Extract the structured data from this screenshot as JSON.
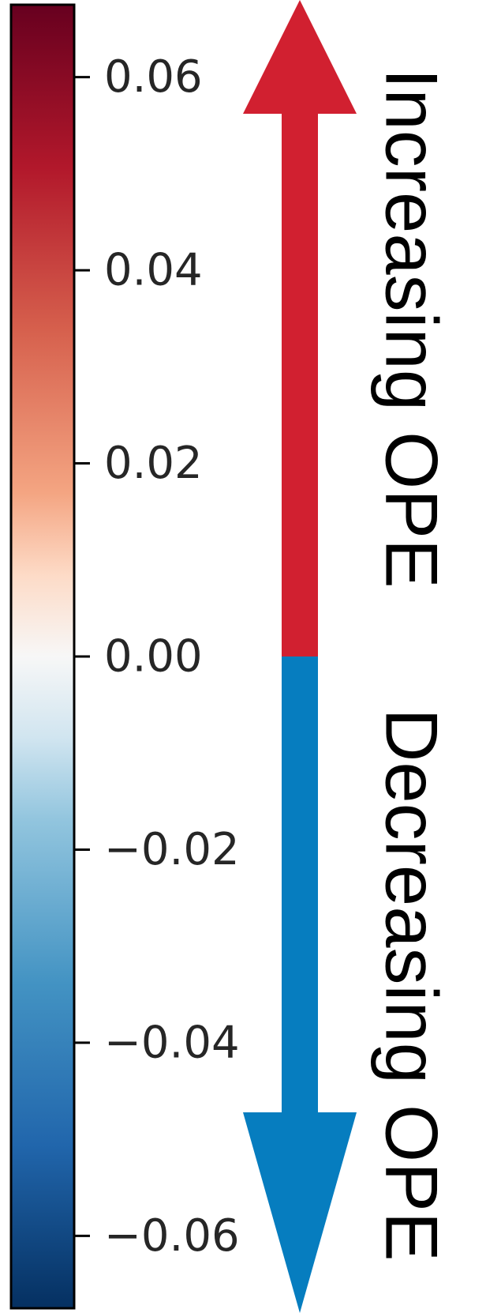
{
  "chart_data": {
    "type": "colorbar",
    "colormap": "RdBu_r",
    "vmin": -0.0675,
    "vmax": 0.0675,
    "ticks": [
      {
        "value": 0.06,
        "label": "0.06"
      },
      {
        "value": 0.04,
        "label": "0.04"
      },
      {
        "value": 0.02,
        "label": "0.02"
      },
      {
        "value": 0.0,
        "label": "0.00"
      },
      {
        "value": -0.02,
        "label": "−0.02"
      },
      {
        "value": -0.04,
        "label": "−0.04"
      },
      {
        "value": -0.06,
        "label": "−0.06"
      }
    ],
    "colorbar_stops": [
      {
        "value": 0.0675,
        "color": "#67001f"
      },
      {
        "value": 0.0506,
        "color": "#b2182b"
      },
      {
        "value": 0.0338,
        "color": "#d6604d"
      },
      {
        "value": 0.0169,
        "color": "#f4a582"
      },
      {
        "value": 0.0084,
        "color": "#fddbc7"
      },
      {
        "value": 0.0,
        "color": "#f7f7f7"
      },
      {
        "value": -0.0084,
        "color": "#d1e5f0"
      },
      {
        "value": -0.0169,
        "color": "#92c5de"
      },
      {
        "value": -0.0338,
        "color": "#4393c3"
      },
      {
        "value": -0.0506,
        "color": "#2166ac"
      },
      {
        "value": -0.0675,
        "color": "#053061"
      }
    ],
    "direction_arrow": {
      "up_label": "Increasing OPE",
      "down_label": "Decreasing OPE",
      "split_value": 0.0,
      "up_color": "#d12030",
      "down_color": "#067dbf"
    }
  }
}
